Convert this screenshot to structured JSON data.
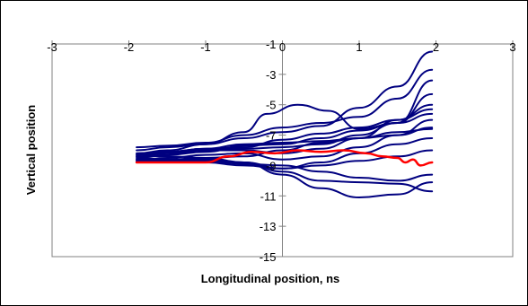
{
  "chart_data": {
    "type": "line",
    "title": "",
    "xlabel": "Longitudinal position, ns",
    "ylabel": "Vertical position",
    "xlim": [
      -3,
      3
    ],
    "ylim": [
      -15,
      -1
    ],
    "x_ticks": [
      "-3",
      "-2",
      "-1",
      "0",
      "1",
      "2",
      "3"
    ],
    "y_ticks": [
      "-1",
      "-3",
      "-5",
      "-7",
      "-9",
      "-11",
      "-13",
      "-15"
    ],
    "grid": false,
    "legend": "none",
    "colors": {
      "trace": "#000080",
      "highlight": "#ff0000"
    },
    "series": [
      {
        "color": "#000080",
        "x": [
          -1.9,
          -1.5,
          -1.0,
          -0.5,
          0.0,
          0.5,
          1.0,
          1.5,
          1.95
        ],
        "y": [
          -8.0,
          -7.8,
          -7.6,
          -7.2,
          -6.8,
          -6.4,
          -5.2,
          -3.8,
          -1.5
        ]
      },
      {
        "color": "#000080",
        "x": [
          -1.9,
          -1.5,
          -1.0,
          -0.5,
          0.0,
          0.5,
          1.0,
          1.5,
          1.95
        ],
        "y": [
          -7.8,
          -7.7,
          -7.5,
          -7.0,
          -6.5,
          -6.2,
          -5.8,
          -4.6,
          -2.7
        ]
      },
      {
        "color": "#000080",
        "x": [
          -1.9,
          -1.5,
          -1.0,
          -0.5,
          -0.2,
          0.2,
          0.6,
          1.0,
          1.5,
          1.95
        ],
        "y": [
          -8.2,
          -8.0,
          -7.6,
          -6.8,
          -5.6,
          -5.0,
          -5.4,
          -6.6,
          -6.2,
          -3.4
        ]
      },
      {
        "color": "#000080",
        "x": [
          -1.9,
          -1.5,
          -1.0,
          -0.5,
          0.0,
          0.5,
          1.0,
          1.5,
          1.95
        ],
        "y": [
          -8.3,
          -8.1,
          -8.0,
          -7.9,
          -7.8,
          -7.6,
          -7.0,
          -6.2,
          -4.3
        ]
      },
      {
        "color": "#000080",
        "x": [
          -1.9,
          -1.5,
          -1.0,
          -0.5,
          0.0,
          0.5,
          1.0,
          1.5,
          1.95
        ],
        "y": [
          -8.4,
          -8.2,
          -8.0,
          -8.0,
          -8.2,
          -7.9,
          -7.2,
          -6.0,
          -5.0
        ]
      },
      {
        "color": "#000080",
        "x": [
          -1.9,
          -1.5,
          -1.0,
          -0.5,
          0.0,
          0.5,
          1.0,
          1.5,
          1.95
        ],
        "y": [
          -8.5,
          -8.3,
          -8.1,
          -7.7,
          -7.6,
          -7.2,
          -6.7,
          -6.2,
          -5.6
        ]
      },
      {
        "color": "#000080",
        "x": [
          -1.9,
          -1.5,
          -1.0,
          -0.5,
          0.0,
          0.5,
          1.0,
          1.5,
          1.95
        ],
        "y": [
          -8.7,
          -8.5,
          -8.3,
          -8.2,
          -8.6,
          -8.4,
          -7.8,
          -7.0,
          -6.0
        ]
      },
      {
        "color": "#000080",
        "x": [
          -1.9,
          -1.5,
          -1.0,
          -0.5,
          0.0,
          0.5,
          1.0,
          1.5,
          1.95
        ],
        "y": [
          -8.6,
          -8.6,
          -8.5,
          -8.4,
          -8.0,
          -7.5,
          -7.2,
          -6.8,
          -6.6
        ]
      },
      {
        "color": "#000080",
        "x": [
          -1.9,
          -1.5,
          -1.0,
          -0.5,
          0.0,
          0.5,
          1.0,
          1.5,
          1.95
        ],
        "y": [
          -8.4,
          -8.4,
          -8.5,
          -8.8,
          -9.2,
          -8.8,
          -8.2,
          -7.6,
          -7.2
        ]
      },
      {
        "color": "#000080",
        "x": [
          -1.9,
          -1.5,
          -1.0,
          -0.5,
          0.0,
          0.5,
          1.0,
          1.5,
          1.95
        ],
        "y": [
          -8.5,
          -8.6,
          -8.8,
          -9.0,
          -9.2,
          -9.0,
          -8.7,
          -8.4,
          -8.0
        ]
      },
      {
        "color": "#000080",
        "x": [
          -1.9,
          -1.5,
          -1.0,
          -0.5,
          0.0,
          0.5,
          1.0,
          1.5,
          1.95
        ],
        "y": [
          -8.6,
          -8.6,
          -8.7,
          -8.9,
          -9.0,
          -9.4,
          -9.8,
          -10.0,
          -9.6
        ]
      },
      {
        "color": "#000080",
        "x": [
          -1.9,
          -1.5,
          -1.0,
          -0.5,
          0.0,
          0.5,
          1.0,
          1.5,
          1.95
        ],
        "y": [
          -8.7,
          -8.6,
          -8.6,
          -8.8,
          -9.4,
          -10.0,
          -10.1,
          -10.2,
          -10.7
        ]
      },
      {
        "color": "#000080",
        "x": [
          -1.9,
          -1.5,
          -1.0,
          -0.5,
          0.0,
          0.5,
          1.0,
          1.5,
          1.95
        ],
        "y": [
          -8.8,
          -8.7,
          -8.7,
          -8.8,
          -9.6,
          -10.5,
          -11.1,
          -10.9,
          -10.1
        ]
      },
      {
        "color": "#000080",
        "x": [
          -1.9,
          -1.5,
          -1.0,
          -0.5,
          0.0,
          0.5,
          1.0,
          1.5,
          1.95
        ],
        "y": [
          -8.3,
          -8.1,
          -7.9,
          -7.6,
          -7.5,
          -7.4,
          -7.2,
          -7.0,
          -6.5
        ]
      },
      {
        "color": "#000080",
        "x": [
          -1.9,
          -1.5,
          -1.0,
          -0.5,
          0.0,
          0.5,
          1.0,
          1.5,
          1.95
        ],
        "y": [
          -8.2,
          -8.1,
          -7.9,
          -7.8,
          -7.3,
          -6.9,
          -6.5,
          -6.0,
          -5.3
        ]
      },
      {
        "color": "#ff0000",
        "x": [
          -1.9,
          -1.5,
          -1.0,
          -0.7,
          -0.4,
          -0.1,
          0.2,
          0.5,
          0.8,
          1.1,
          1.3,
          1.5,
          1.6,
          1.7,
          1.8,
          1.95
        ],
        "y": [
          -8.8,
          -8.8,
          -8.8,
          -8.4,
          -8.1,
          -8.2,
          -8.0,
          -8.1,
          -8.0,
          -8.2,
          -8.4,
          -8.5,
          -8.8,
          -8.6,
          -9.0,
          -8.8
        ]
      }
    ]
  }
}
